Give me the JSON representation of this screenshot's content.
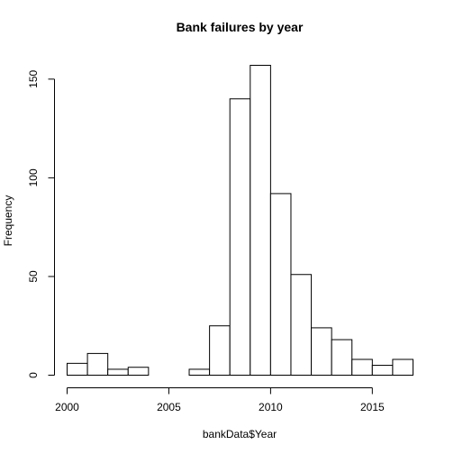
{
  "chart_data": {
    "type": "bar",
    "title": "Bank failures by year",
    "xlabel": "bankData$Year",
    "ylabel": "Frequency",
    "bins": [
      {
        "start": 2000,
        "end": 2001,
        "count": 6
      },
      {
        "start": 2001,
        "end": 2002,
        "count": 11
      },
      {
        "start": 2002,
        "end": 2003,
        "count": 3
      },
      {
        "start": 2003,
        "end": 2004,
        "count": 4
      },
      {
        "start": 2004,
        "end": 2005,
        "count": 0
      },
      {
        "start": 2005,
        "end": 2006,
        "count": 0
      },
      {
        "start": 2006,
        "end": 2007,
        "count": 3
      },
      {
        "start": 2007,
        "end": 2008,
        "count": 25
      },
      {
        "start": 2008,
        "end": 2009,
        "count": 140
      },
      {
        "start": 2009,
        "end": 2010,
        "count": 157
      },
      {
        "start": 2010,
        "end": 2011,
        "count": 92
      },
      {
        "start": 2011,
        "end": 2012,
        "count": 51
      },
      {
        "start": 2012,
        "end": 2013,
        "count": 24
      },
      {
        "start": 2013,
        "end": 2014,
        "count": 18
      },
      {
        "start": 2014,
        "end": 2015,
        "count": 8
      },
      {
        "start": 2015,
        "end": 2016,
        "count": 5
      },
      {
        "start": 2016,
        "end": 2017,
        "count": 8
      }
    ],
    "xlim": [
      2000,
      2017
    ],
    "ylim": [
      0,
      157
    ],
    "xticks": [
      2000,
      2005,
      2010,
      2015
    ],
    "xtick_labels": [
      "2000",
      "2005",
      "2010",
      "2015"
    ],
    "yticks": [
      0,
      50,
      100,
      150
    ],
    "ytick_labels": [
      "0",
      "50",
      "100",
      "150"
    ],
    "grid": false,
    "bar_fill": "#ffffff",
    "bar_stroke": "#000000"
  }
}
